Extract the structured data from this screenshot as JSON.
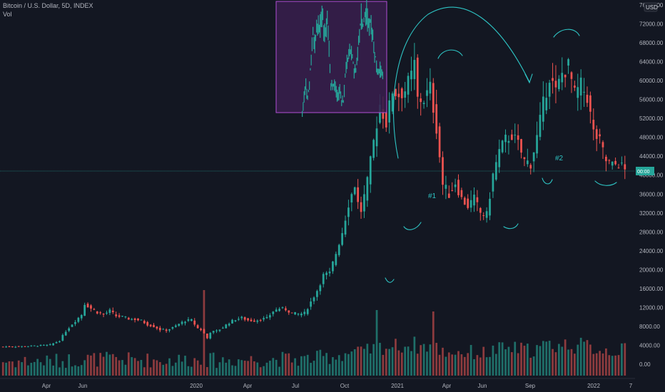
{
  "header": {
    "symbol": "Bitcoin / U.S. Dollar, 5D, INDEX",
    "volume_label": "Vol"
  },
  "currency": "USD",
  "last_price_label": "00:00",
  "colors": {
    "up": "#26a69a",
    "down": "#ef5350",
    "vol_up": "#1f6f69",
    "vol_down": "#8d3b3e",
    "annotation": "#2ec4c4",
    "inset_bg": "#3a1f4d",
    "inset_border": "#b04fd6",
    "background": "#131722",
    "text": "#b2b5be",
    "price_line": "#26a69a"
  },
  "annotations": {
    "label_1": "#1",
    "label_2": "#2"
  },
  "chart_data": {
    "type": "candlestick",
    "title": "Bitcoin / U.S. Dollar, 5D, INDEX",
    "ylim": [
      -2000,
      76000
    ],
    "y_ticks": [
      "76000.00",
      "72000.00",
      "68000.00",
      "64000.00",
      "60000.00",
      "56000.00",
      "52000.00",
      "48000.00",
      "44000.00",
      "40000.00",
      "36000.00",
      "32000.00",
      "28000.00",
      "24000.00",
      "20000.00",
      "16000.00",
      "12000.00",
      "8000.00",
      "4000.00",
      "0.00"
    ],
    "x_tick_labels": [
      "Apr",
      "Jun",
      "2020",
      "Apr",
      "Jul",
      "Oct",
      "2021",
      "Apr",
      "Jun",
      "Sep",
      "2022",
      "7"
    ],
    "last_price": 41000,
    "price_anchors": [
      [
        0,
        3700
      ],
      [
        5,
        3750
      ],
      [
        10,
        3900
      ],
      [
        13,
        4000
      ],
      [
        15,
        4100
      ],
      [
        18,
        5000
      ],
      [
        20,
        7000
      ],
      [
        22,
        8500
      ],
      [
        25,
        10500
      ],
      [
        26,
        12800
      ],
      [
        28,
        11800
      ],
      [
        30,
        11000
      ],
      [
        32,
        10500
      ],
      [
        34,
        11300
      ],
      [
        36,
        10200
      ],
      [
        38,
        10000
      ],
      [
        40,
        9600
      ],
      [
        42,
        9500
      ],
      [
        44,
        9200
      ],
      [
        46,
        8400
      ],
      [
        48,
        8000
      ],
      [
        50,
        7300
      ],
      [
        52,
        7200
      ],
      [
        54,
        7700
      ],
      [
        56,
        8500
      ],
      [
        58,
        9200
      ],
      [
        60,
        9300
      ],
      [
        62,
        7600
      ],
      [
        63,
        7300
      ],
      [
        64,
        6500
      ],
      [
        65,
        5500
      ],
      [
        66,
        6800
      ],
      [
        68,
        7000
      ],
      [
        70,
        7800
      ],
      [
        72,
        8800
      ],
      [
        74,
        9500
      ],
      [
        76,
        9800
      ],
      [
        78,
        9300
      ],
      [
        80,
        9200
      ],
      [
        82,
        9500
      ],
      [
        84,
        9700
      ],
      [
        86,
        11200
      ],
      [
        88,
        11800
      ],
      [
        90,
        11600
      ],
      [
        92,
        10800
      ],
      [
        94,
        10600
      ],
      [
        96,
        10800
      ],
      [
        98,
        13200
      ],
      [
        100,
        15600
      ],
      [
        102,
        18800
      ],
      [
        104,
        19200
      ],
      [
        106,
        23500
      ],
      [
        108,
        28000
      ],
      [
        110,
        34000
      ],
      [
        112,
        38000
      ],
      [
        113,
        34000
      ],
      [
        114,
        32500
      ],
      [
        116,
        38500
      ],
      [
        118,
        47000
      ],
      [
        120,
        55000
      ],
      [
        122,
        51000
      ],
      [
        124,
        58000
      ],
      [
        126,
        57000
      ],
      [
        128,
        58000
      ],
      [
        130,
        61000
      ],
      [
        131,
        63500
      ],
      [
        132,
        56000
      ],
      [
        134,
        56000
      ],
      [
        136,
        58500
      ],
      [
        138,
        50000
      ],
      [
        140,
        38000
      ],
      [
        142,
        36000
      ],
      [
        144,
        38500
      ],
      [
        146,
        35000
      ],
      [
        148,
        33500
      ],
      [
        150,
        35000
      ],
      [
        152,
        32000
      ],
      [
        154,
        31500
      ],
      [
        156,
        40000
      ],
      [
        158,
        45000
      ],
      [
        160,
        47500
      ],
      [
        162,
        48500
      ],
      [
        164,
        46500
      ],
      [
        166,
        43000
      ],
      [
        168,
        42500
      ],
      [
        170,
        48000
      ],
      [
        172,
        55000
      ],
      [
        174,
        61000
      ],
      [
        176,
        57500
      ],
      [
        178,
        61500
      ],
      [
        180,
        63000
      ],
      [
        182,
        57000
      ],
      [
        184,
        59000
      ],
      [
        186,
        56500
      ],
      [
        188,
        49000
      ],
      [
        190,
        47000
      ],
      [
        192,
        43000
      ],
      [
        194,
        42000
      ],
      [
        196,
        42500
      ],
      [
        198,
        41000
      ]
    ],
    "volume_axis": {
      "max": 12000
    }
  }
}
